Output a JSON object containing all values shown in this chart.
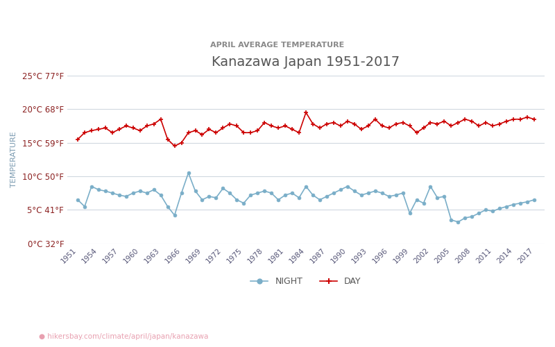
{
  "title": "Kanazawa Japan 1951-2017",
  "subtitle": "APRIL AVERAGE TEMPERATURE",
  "ylabel": "TEMPERATURE",
  "url_text": "hikersbay.com/climate/april/japan/kanazawa",
  "years": [
    1951,
    1952,
    1953,
    1954,
    1955,
    1956,
    1957,
    1958,
    1959,
    1960,
    1961,
    1962,
    1963,
    1964,
    1965,
    1966,
    1967,
    1968,
    1969,
    1970,
    1971,
    1972,
    1973,
    1974,
    1975,
    1976,
    1977,
    1978,
    1979,
    1980,
    1981,
    1982,
    1983,
    1984,
    1985,
    1986,
    1987,
    1988,
    1989,
    1990,
    1991,
    1992,
    1993,
    1994,
    1995,
    1996,
    1997,
    1998,
    1999,
    2000,
    2001,
    2002,
    2003,
    2004,
    2005,
    2006,
    2007,
    2008,
    2009,
    2010,
    2011,
    2012,
    2013,
    2014,
    2015,
    2016,
    2017
  ],
  "day_temps": [
    15.5,
    16.5,
    16.8,
    17.0,
    17.2,
    16.5,
    17.0,
    17.5,
    17.2,
    16.8,
    17.5,
    17.8,
    18.5,
    15.5,
    14.5,
    15.0,
    16.5,
    16.8,
    16.2,
    17.0,
    16.5,
    17.2,
    17.8,
    17.5,
    16.5,
    16.5,
    16.8,
    18.0,
    17.5,
    17.2,
    17.5,
    17.0,
    16.5,
    19.5,
    17.8,
    17.2,
    17.8,
    18.0,
    17.5,
    18.2,
    17.8,
    17.0,
    17.5,
    18.5,
    17.5,
    17.2,
    17.8,
    18.0,
    17.5,
    16.5,
    17.2,
    18.0,
    17.8,
    18.2,
    17.5,
    18.0,
    18.5,
    18.2,
    17.5,
    18.0,
    17.5,
    17.8,
    18.2,
    18.5,
    18.5,
    18.8,
    18.5
  ],
  "night_temps": [
    6.5,
    5.5,
    8.5,
    8.0,
    7.8,
    7.5,
    7.2,
    7.0,
    7.5,
    7.8,
    7.5,
    8.0,
    7.2,
    5.5,
    4.2,
    7.5,
    10.5,
    7.8,
    6.5,
    7.0,
    6.8,
    8.2,
    7.5,
    6.5,
    6.0,
    7.2,
    7.5,
    7.8,
    7.5,
    6.5,
    7.2,
    7.5,
    6.8,
    8.5,
    7.2,
    6.5,
    7.0,
    7.5,
    8.0,
    8.5,
    7.8,
    7.2,
    7.5,
    7.8,
    7.5,
    7.0,
    7.2,
    7.5,
    4.5,
    6.5,
    6.0,
    8.5,
    6.8,
    7.0,
    3.5,
    3.2,
    3.8,
    4.0,
    4.5,
    5.0,
    4.8,
    5.2,
    5.5,
    5.8,
    6.0,
    6.2,
    6.5
  ],
  "day_color": "#cc0000",
  "night_color": "#7aaec8",
  "background_color": "#ffffff",
  "grid_color": "#d0d8e0",
  "yticks_c": [
    0,
    5,
    10,
    15,
    20,
    25
  ],
  "yticks_f": [
    32,
    41,
    50,
    59,
    68,
    77
  ],
  "xtick_years": [
    1951,
    1954,
    1957,
    1960,
    1963,
    1966,
    1969,
    1972,
    1975,
    1978,
    1981,
    1984,
    1987,
    1990,
    1993,
    1996,
    1999,
    2002,
    2005,
    2008,
    2011,
    2014,
    2017
  ],
  "ylim": [
    0,
    25
  ],
  "title_color": "#555555",
  "subtitle_color": "#888888",
  "tick_label_color": "#8b2020",
  "ylabel_color": "#7a9ab0",
  "url_color": "#e8a0b0",
  "marker_size": 4
}
